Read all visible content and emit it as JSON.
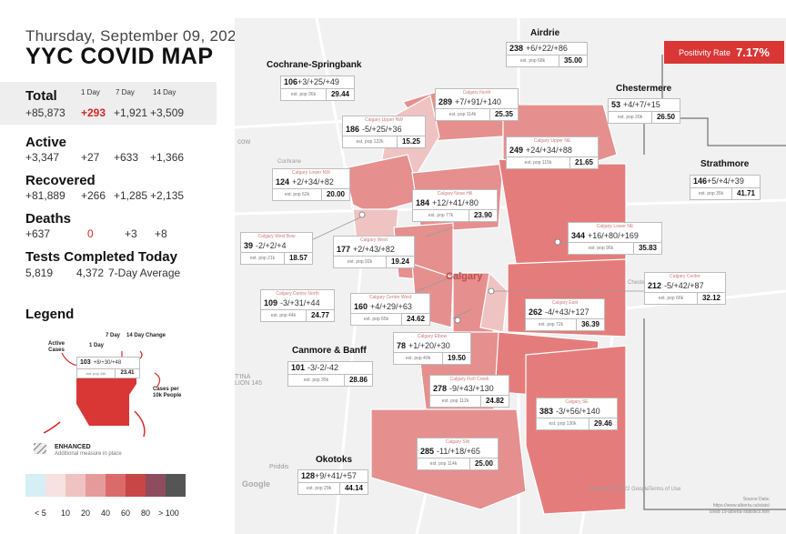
{
  "header": {
    "date": "Thursday, September 09, 2021",
    "title": "YYC COVID MAP"
  },
  "stats": {
    "columns": [
      "1 Day",
      "7 Day",
      "14 Day"
    ],
    "total": {
      "label": "Total",
      "value": "+85,873",
      "day1": "+293",
      "day7": "+1,921",
      "day14": "+3,509"
    },
    "active": {
      "label": "Active",
      "value": "+3,347",
      "day1": "+27",
      "day7": "+633",
      "day14": "+1,366"
    },
    "recovered": {
      "label": "Recovered",
      "value": "+81,889",
      "day1": "+266",
      "day7": "+1,285",
      "day14": "+2,135"
    },
    "deaths": {
      "label": "Deaths",
      "value": "+637",
      "day1": "0",
      "day7": "+3",
      "day14": "+8"
    },
    "tests": {
      "label": "Tests Completed Today",
      "value": "5,819",
      "avg": "4,372",
      "avg_label": "7-Day Average"
    }
  },
  "legend": {
    "title": "Legend",
    "active_cases": "Active Cases",
    "one_day": "1 Day",
    "seven_day": "7 Day",
    "fourteen_day_change": "14 Day Change",
    "example_cases": "103",
    "example_changes": "+8/+30/+48",
    "example_pop": "est. pop 44k",
    "example_rate": "23.41",
    "cases_per_10k": "Cases per 10k People",
    "enhanced": "ENHANCED",
    "enhanced_desc": "Additional measure in place",
    "scale_labels": [
      "< 5",
      "10",
      "20",
      "40",
      "60",
      "80",
      "> 100"
    ],
    "scale_colors": [
      "#d6eef6",
      "#f7e1e1",
      "#f0c3c3",
      "#e69b9b",
      "#db6b6b",
      "#c94646",
      "#8e4d5e",
      "#555555"
    ]
  },
  "positivity": {
    "label": "Positivity Rate",
    "value": "7.17%"
  },
  "calgary_label": "Calgary",
  "places": {
    "airdrie": {
      "title": "Airdrie",
      "cases": "238",
      "changes": "+6/+22/+86",
      "pop": "est. pop 68k",
      "rate": "35.00"
    },
    "cochrane": {
      "title": "Cochrane-Springbank",
      "cases": "106",
      "changes": "+3/+25/+49",
      "pop": "est. pop 36k",
      "rate": "29.44"
    },
    "chestermere": {
      "title": "Chestermere",
      "cases": "53",
      "changes": "+4/+7/+15",
      "pop": "est. pop 20k",
      "rate": "26.50"
    },
    "strathmore": {
      "title": "Strathmore",
      "cases": "146",
      "changes": "+5/+4/+39",
      "pop": "est. pop 35k",
      "rate": "41.71"
    },
    "canmore": {
      "title": "Canmore & Banff",
      "cases": "101",
      "changes": "-3/-2/-42",
      "pop": "est. pop 35k",
      "rate": "28.86"
    },
    "okotoks": {
      "title": "Okotoks",
      "cases": "128",
      "changes": "+9/+41/+57",
      "pop": "est. pop 29k",
      "rate": "44.14"
    },
    "north": {
      "name": "Calgary North",
      "cases": "289",
      "changes": "+7/+91/+140",
      "pop": "est. pop 114k",
      "rate": "25.35"
    },
    "upper_nw": {
      "name": "Calgary Upper NW",
      "cases": "186",
      "changes": "-5/+25/+36",
      "pop": "est. pop 122k",
      "rate": "15.25"
    },
    "upper_ne": {
      "name": "Calgary Upper NE",
      "cases": "249",
      "changes": "+24/+34/+88",
      "pop": "est. pop 115k",
      "rate": "21.65"
    },
    "lower_nw": {
      "name": "Calgary Lower NW",
      "cases": "124",
      "changes": "+2/+34/+82",
      "pop": "est. pop 62k",
      "rate": "20.00"
    },
    "nose_hill": {
      "name": "Calgary Nose Hill",
      "cases": "184",
      "changes": "+12/+41/+80",
      "pop": "est. pop 77k",
      "rate": "23.90"
    },
    "west_bow": {
      "name": "Calgary West Bow",
      "cases": "39",
      "changes": "-2/+2/+4",
      "pop": "est. pop 21k",
      "rate": "18.57"
    },
    "west": {
      "name": "Calgary West",
      "cases": "177",
      "changes": "+2/+43/+82",
      "pop": "est. pop 92k",
      "rate": "19.24"
    },
    "lower_ne": {
      "name": "Calgary Lower NE",
      "cases": "344",
      "changes": "+16/+80/+169",
      "pop": "est. pop 96k",
      "rate": "35.83"
    },
    "centre_north": {
      "name": "Calgary Centre North",
      "cases": "109",
      "changes": "-3/+31/+44",
      "pop": "est. pop 44k",
      "rate": "24.77"
    },
    "centre_west": {
      "name": "Calgary Centre West",
      "cases": "160",
      "changes": "+4/+29/+63",
      "pop": "est. pop 65k",
      "rate": "24.62"
    },
    "centre": {
      "name": "Calgary Centre",
      "cases": "212",
      "changes": "-5/+42/+87",
      "pop": "est. pop 66k",
      "rate": "32.12"
    },
    "east": {
      "name": "Calgary East",
      "cases": "262",
      "changes": "-4/+43/+127",
      "pop": "est. pop 72k",
      "rate": "36.39"
    },
    "elbow": {
      "name": "Calgary Elbow",
      "cases": "78",
      "changes": "+1/+20/+30",
      "pop": "est. pop 40k",
      "rate": "19.50"
    },
    "fish_creek": {
      "name": "Calgary Fish Creek",
      "cases": "278",
      "changes": "-9/+43/+130",
      "pop": "est. pop 112k",
      "rate": "24.82"
    },
    "se": {
      "name": "Calgary SE",
      "cases": "383",
      "changes": "-3/+56/+140",
      "pop": "est. pop 130k",
      "rate": "29.46"
    },
    "sw": {
      "name": "Calgary SW",
      "cases": "285",
      "changes": "-11/+18/+65",
      "pop": "est. pop 114k",
      "rate": "25.00"
    }
  },
  "map_labels": {
    "cow": "cow",
    "cochrane_town": "Cochrane",
    "priddis": "Priddis",
    "google": "Google",
    "attribution": "Map data ©2022 Google",
    "terms": "Terms of Use",
    "tsuutina": "T'INA\nLION 145",
    "chestermere_small": "Chestermere"
  },
  "source": {
    "label": "Source Data:",
    "url1": "https://www.alberta.ca/stats/",
    "url2": "covid-19-alberta-statistics.htm"
  }
}
